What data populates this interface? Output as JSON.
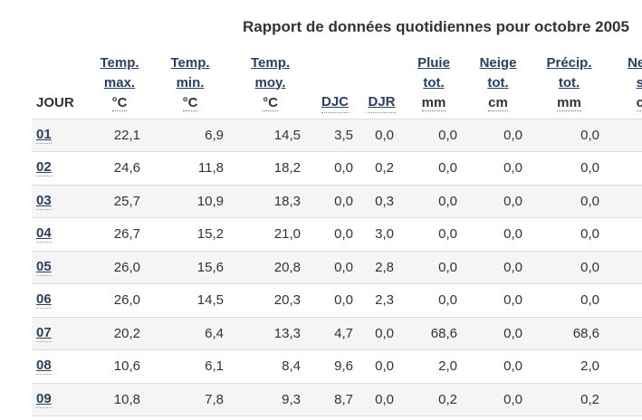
{
  "title": "Rapport de données quotidiennes pour octobre 2005",
  "colors": {
    "link_blue": "#284162",
    "body_text": "#333333",
    "row_stripe": "#f5f5f5",
    "divider": "#dcdcdc"
  },
  "table": {
    "day_header": "JOUR",
    "columns": [
      {
        "id": "tmax",
        "label": "Temp. max.",
        "unit": "°C"
      },
      {
        "id": "tmin",
        "label": "Temp. min.",
        "unit": "°C"
      },
      {
        "id": "tmoy",
        "label": "Temp. moy.",
        "unit": "°C"
      },
      {
        "id": "djc",
        "label": "DJC",
        "unit": ""
      },
      {
        "id": "djr",
        "label": "DJR",
        "unit": ""
      },
      {
        "id": "pluie",
        "label": "Pluie tot.",
        "unit": "mm"
      },
      {
        "id": "neige",
        "label": "Neige tot.",
        "unit": "cm"
      },
      {
        "id": "precip",
        "label": "Précip. tot.",
        "unit": "mm"
      },
      {
        "id": "neigesol",
        "label": "Neige sol",
        "unit": "cm"
      }
    ],
    "rows": [
      {
        "day": "01",
        "values": [
          "22,1",
          "6,9",
          "14,5",
          "3,5",
          "0,0",
          "0,0",
          "0,0",
          "0,0",
          ""
        ]
      },
      {
        "day": "02",
        "values": [
          "24,6",
          "11,8",
          "18,2",
          "0,0",
          "0,2",
          "0,0",
          "0,0",
          "0,0",
          ""
        ]
      },
      {
        "day": "03",
        "values": [
          "25,7",
          "10,9",
          "18,3",
          "0,0",
          "0,3",
          "0,0",
          "0,0",
          "0,0",
          ""
        ]
      },
      {
        "day": "04",
        "values": [
          "26,7",
          "15,2",
          "21,0",
          "0,0",
          "3,0",
          "0,0",
          "0,0",
          "0,0",
          ""
        ]
      },
      {
        "day": "05",
        "values": [
          "26,0",
          "15,6",
          "20,8",
          "0,0",
          "2,8",
          "0,0",
          "0,0",
          "0,0",
          ""
        ]
      },
      {
        "day": "06",
        "values": [
          "26,0",
          "14,5",
          "20,3",
          "0,0",
          "2,3",
          "0,0",
          "0,0",
          "0,0",
          ""
        ]
      },
      {
        "day": "07",
        "values": [
          "20,2",
          "6,4",
          "13,3",
          "4,7",
          "0,0",
          "68,6",
          "0,0",
          "68,6",
          ""
        ]
      },
      {
        "day": "08",
        "values": [
          "10,6",
          "6,1",
          "8,4",
          "9,6",
          "0,0",
          "2,0",
          "0,0",
          "2,0",
          ""
        ]
      },
      {
        "day": "09",
        "values": [
          "10,8",
          "7,8",
          "9,3",
          "8,7",
          "0,0",
          "0,2",
          "0,0",
          "0,2",
          ""
        ]
      }
    ]
  }
}
